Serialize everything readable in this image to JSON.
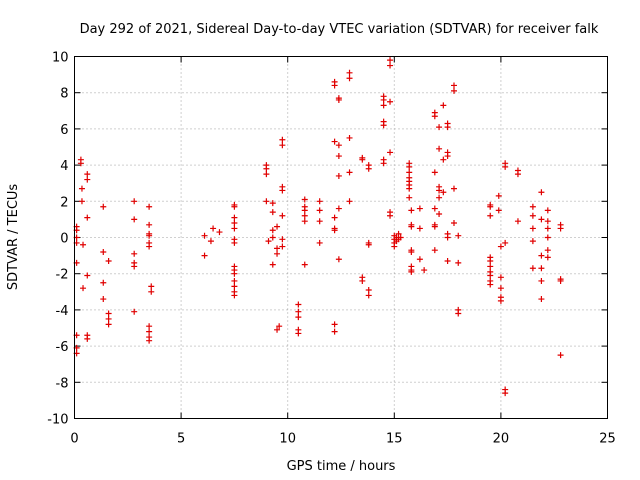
{
  "chart_data": {
    "type": "scatter",
    "title": "Day 292 of 2021, Sidereal Day-to-day VTEC variation (SDTVAR) for receiver falk",
    "xlabel": "GPS time / hours",
    "ylabel": "SDTVAR / TECUs",
    "xlim": [
      0,
      25
    ],
    "ylim": [
      -10,
      10
    ],
    "xticks": [
      0,
      5,
      10,
      15,
      20,
      25
    ],
    "yticks": [
      -10,
      -8,
      -6,
      -4,
      -2,
      0,
      2,
      4,
      6,
      8,
      10
    ],
    "grid": true,
    "marker": "plus",
    "color": "#e00000",
    "series": [
      {
        "name": "SDTVAR",
        "points": [
          [
            0.1,
            0.6
          ],
          [
            0.1,
            0.4
          ],
          [
            0.1,
            0.0
          ],
          [
            0.1,
            -0.3
          ],
          [
            0.1,
            -1.4
          ],
          [
            0.1,
            -5.4
          ],
          [
            0.1,
            -6.1
          ],
          [
            0.1,
            -6.4
          ],
          [
            0.3,
            4.3
          ],
          [
            0.3,
            4.1
          ],
          [
            0.35,
            2.7
          ],
          [
            0.35,
            2.0
          ],
          [
            0.4,
            -0.4
          ],
          [
            0.4,
            -2.8
          ],
          [
            0.6,
            3.5
          ],
          [
            0.6,
            3.2
          ],
          [
            0.6,
            1.1
          ],
          [
            0.6,
            -2.1
          ],
          [
            0.6,
            -5.4
          ],
          [
            0.6,
            -5.6
          ],
          [
            1.35,
            1.7
          ],
          [
            1.35,
            -0.8
          ],
          [
            1.35,
            -2.5
          ],
          [
            1.35,
            -3.4
          ],
          [
            1.6,
            -1.3
          ],
          [
            1.6,
            -4.2
          ],
          [
            1.6,
            -4.5
          ],
          [
            1.6,
            -4.8
          ],
          [
            2.8,
            2.0
          ],
          [
            2.8,
            1.0
          ],
          [
            2.8,
            -0.9
          ],
          [
            2.8,
            -1.4
          ],
          [
            2.8,
            -1.6
          ],
          [
            2.8,
            -4.1
          ],
          [
            3.5,
            1.7
          ],
          [
            3.5,
            0.7
          ],
          [
            3.5,
            0.2
          ],
          [
            3.5,
            0.1
          ],
          [
            3.5,
            -0.3
          ],
          [
            3.5,
            -0.5
          ],
          [
            3.6,
            -2.7
          ],
          [
            3.6,
            -3.0
          ],
          [
            3.5,
            -4.9
          ],
          [
            3.5,
            -5.2
          ],
          [
            3.5,
            -5.5
          ],
          [
            3.5,
            -5.7
          ],
          [
            6.1,
            0.1
          ],
          [
            6.1,
            -1.0
          ],
          [
            6.4,
            -0.2
          ],
          [
            6.5,
            0.5
          ],
          [
            6.8,
            0.3
          ],
          [
            7.5,
            1.8
          ],
          [
            7.5,
            1.7
          ],
          [
            7.5,
            1.1
          ],
          [
            7.5,
            0.8
          ],
          [
            7.5,
            0.5
          ],
          [
            7.5,
            -0.1
          ],
          [
            7.5,
            -0.3
          ],
          [
            7.5,
            -1.6
          ],
          [
            7.5,
            -1.8
          ],
          [
            7.5,
            -2.0
          ],
          [
            7.5,
            -2.4
          ],
          [
            7.5,
            -2.7
          ],
          [
            7.5,
            -3.0
          ],
          [
            7.5,
            -3.2
          ],
          [
            9.0,
            4.0
          ],
          [
            9.0,
            3.8
          ],
          [
            9.0,
            3.5
          ],
          [
            9.0,
            2.0
          ],
          [
            9.1,
            -0.2
          ],
          [
            9.3,
            1.9
          ],
          [
            9.3,
            1.4
          ],
          [
            9.3,
            0.4
          ],
          [
            9.3,
            0.0
          ],
          [
            9.3,
            -1.5
          ],
          [
            9.5,
            0.6
          ],
          [
            9.5,
            -0.6
          ],
          [
            9.5,
            -0.9
          ],
          [
            9.5,
            -5.1
          ],
          [
            9.6,
            -4.9
          ],
          [
            9.75,
            5.4
          ],
          [
            9.75,
            5.1
          ],
          [
            9.75,
            2.8
          ],
          [
            9.75,
            2.6
          ],
          [
            9.75,
            1.2
          ],
          [
            9.75,
            -0.1
          ],
          [
            9.75,
            -0.5
          ],
          [
            10.5,
            -3.7
          ],
          [
            10.5,
            -4.1
          ],
          [
            10.5,
            -4.4
          ],
          [
            10.5,
            -5.1
          ],
          [
            10.5,
            -5.3
          ],
          [
            10.8,
            2.1
          ],
          [
            10.8,
            1.7
          ],
          [
            10.8,
            1.5
          ],
          [
            10.8,
            1.2
          ],
          [
            10.8,
            0.9
          ],
          [
            10.8,
            -1.5
          ],
          [
            11.5,
            2.0
          ],
          [
            11.5,
            1.5
          ],
          [
            11.5,
            0.9
          ],
          [
            11.5,
            -0.3
          ],
          [
            12.2,
            1.1
          ],
          [
            12.2,
            0.5
          ],
          [
            12.2,
            0.4
          ],
          [
            12.2,
            -4.8
          ],
          [
            12.2,
            -5.2
          ],
          [
            12.2,
            8.6
          ],
          [
            12.2,
            8.4
          ],
          [
            12.2,
            5.3
          ],
          [
            12.4,
            7.6
          ],
          [
            12.4,
            7.7
          ],
          [
            12.4,
            5.1
          ],
          [
            12.4,
            4.5
          ],
          [
            12.4,
            3.4
          ],
          [
            12.4,
            1.6
          ],
          [
            12.4,
            -1.2
          ],
          [
            12.9,
            9.1
          ],
          [
            12.9,
            8.8
          ],
          [
            12.9,
            5.5
          ],
          [
            12.9,
            3.6
          ],
          [
            12.9,
            2.0
          ],
          [
            13.5,
            4.4
          ],
          [
            13.5,
            4.3
          ],
          [
            13.5,
            -2.2
          ],
          [
            13.5,
            -2.4
          ],
          [
            13.8,
            4.0
          ],
          [
            13.8,
            3.8
          ],
          [
            13.8,
            -0.3
          ],
          [
            13.8,
            -0.4
          ],
          [
            13.8,
            -2.9
          ],
          [
            13.8,
            -3.2
          ],
          [
            14.5,
            7.8
          ],
          [
            14.5,
            7.6
          ],
          [
            14.5,
            7.3
          ],
          [
            14.5,
            6.4
          ],
          [
            14.5,
            6.2
          ],
          [
            14.5,
            4.3
          ],
          [
            14.5,
            4.1
          ],
          [
            14.8,
            9.8
          ],
          [
            14.8,
            9.5
          ],
          [
            14.8,
            7.5
          ],
          [
            14.8,
            4.7
          ],
          [
            14.8,
            1.4
          ],
          [
            14.8,
            1.2
          ],
          [
            15.0,
            0.1
          ],
          [
            15.0,
            -0.1
          ],
          [
            15.0,
            -0.3
          ],
          [
            15.0,
            -0.5
          ],
          [
            15.1,
            0.0
          ],
          [
            15.1,
            -0.2
          ],
          [
            15.2,
            0.2
          ],
          [
            15.2,
            -0.1
          ],
          [
            15.3,
            0.0
          ],
          [
            15.7,
            4.1
          ],
          [
            15.7,
            3.9
          ],
          [
            15.7,
            3.6
          ],
          [
            15.7,
            3.3
          ],
          [
            15.7,
            3.1
          ],
          [
            15.7,
            2.9
          ],
          [
            15.7,
            2.7
          ],
          [
            15.7,
            2.2
          ],
          [
            15.8,
            1.5
          ],
          [
            15.8,
            0.7
          ],
          [
            15.8,
            0.6
          ],
          [
            15.8,
            -0.7
          ],
          [
            15.8,
            -0.8
          ],
          [
            15.8,
            -1.6
          ],
          [
            15.8,
            -1.8
          ],
          [
            15.8,
            -1.9
          ],
          [
            16.2,
            1.6
          ],
          [
            16.2,
            0.5
          ],
          [
            16.2,
            -1.2
          ],
          [
            16.4,
            -1.8
          ],
          [
            16.9,
            6.9
          ],
          [
            16.9,
            6.7
          ],
          [
            16.9,
            3.6
          ],
          [
            16.9,
            1.6
          ],
          [
            16.9,
            0.7
          ],
          [
            16.9,
            0.6
          ],
          [
            16.9,
            -0.7
          ],
          [
            17.1,
            6.1
          ],
          [
            17.1,
            4.9
          ],
          [
            17.1,
            2.8
          ],
          [
            17.1,
            2.6
          ],
          [
            17.1,
            2.2
          ],
          [
            17.1,
            1.3
          ],
          [
            17.3,
            7.3
          ],
          [
            17.3,
            4.3
          ],
          [
            17.3,
            2.5
          ],
          [
            17.5,
            6.3
          ],
          [
            17.5,
            6.1
          ],
          [
            17.5,
            4.7
          ],
          [
            17.5,
            4.5
          ],
          [
            17.5,
            0.2
          ],
          [
            17.5,
            0.0
          ],
          [
            17.5,
            -1.3
          ],
          [
            17.8,
            8.4
          ],
          [
            17.8,
            8.1
          ],
          [
            17.8,
            2.7
          ],
          [
            17.8,
            0.8
          ],
          [
            18.0,
            0.1
          ],
          [
            18.0,
            -1.4
          ],
          [
            18.0,
            -4.0
          ],
          [
            18.0,
            -4.2
          ],
          [
            19.5,
            1.8
          ],
          [
            19.5,
            1.7
          ],
          [
            19.5,
            1.2
          ],
          [
            19.5,
            -1.1
          ],
          [
            19.5,
            -1.3
          ],
          [
            19.5,
            -1.6
          ],
          [
            19.5,
            -1.9
          ],
          [
            19.5,
            -2.1
          ],
          [
            19.5,
            -2.4
          ],
          [
            19.5,
            -2.6
          ],
          [
            19.9,
            2.3
          ],
          [
            19.9,
            1.5
          ],
          [
            20.0,
            -0.5
          ],
          [
            20.0,
            -2.2
          ],
          [
            20.0,
            -2.8
          ],
          [
            20.0,
            -3.3
          ],
          [
            20.0,
            -3.5
          ],
          [
            20.2,
            4.1
          ],
          [
            20.2,
            3.9
          ],
          [
            20.2,
            -0.3
          ],
          [
            20.2,
            -8.4
          ],
          [
            20.2,
            -8.6
          ],
          [
            20.8,
            3.7
          ],
          [
            20.8,
            3.5
          ],
          [
            20.8,
            0.9
          ],
          [
            21.5,
            1.7
          ],
          [
            21.5,
            1.2
          ],
          [
            21.5,
            0.5
          ],
          [
            21.5,
            -0.2
          ],
          [
            21.5,
            -1.7
          ],
          [
            21.9,
            2.5
          ],
          [
            21.9,
            1.0
          ],
          [
            21.9,
            -1.0
          ],
          [
            21.9,
            -1.7
          ],
          [
            21.9,
            -2.4
          ],
          [
            21.9,
            -3.4
          ],
          [
            22.2,
            1.5
          ],
          [
            22.2,
            0.9
          ],
          [
            22.2,
            0.5
          ],
          [
            22.2,
            0.0
          ],
          [
            22.2,
            -0.7
          ],
          [
            22.2,
            -1.1
          ],
          [
            22.8,
            0.7
          ],
          [
            22.8,
            0.5
          ],
          [
            22.8,
            -2.3
          ],
          [
            22.8,
            -2.4
          ],
          [
            22.8,
            -6.5
          ]
        ]
      }
    ]
  }
}
